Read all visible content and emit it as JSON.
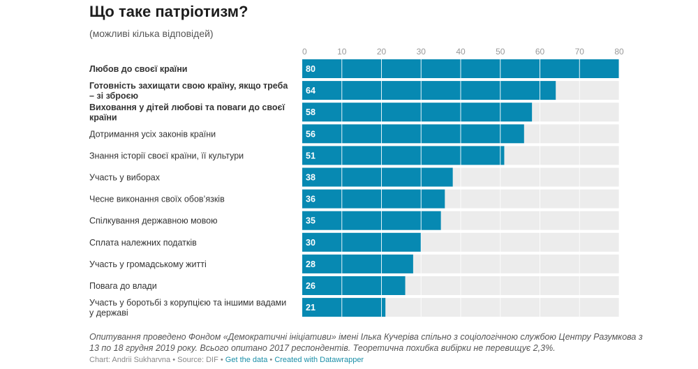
{
  "chart_data": {
    "type": "bar",
    "orientation": "horizontal",
    "title": "Що таке патріотизм?",
    "subtitle": "(можливі кілька відповідей)",
    "xlim": [
      0,
      80
    ],
    "ticks": [
      0,
      10,
      20,
      30,
      40,
      50,
      60,
      70,
      80
    ],
    "categories": [
      "Любов до своєї країни",
      "Готовність захищати свою країну, якщо треба – зі зброєю",
      "Виховання у дітей любові та поваги до своєї країни",
      "Дотримання усіх законів країни",
      "Знання історії своєї країни, її культури",
      "Участь у виборах",
      "Чесне виконання своїх обов’язків",
      "Спілкування державною мовою",
      "Сплата належних податків",
      "Участь у громадському житті",
      "Повага до влади",
      "Участь у боротьбі з корупцією та іншими вадами у державі"
    ],
    "values": [
      80,
      64,
      58,
      56,
      51,
      38,
      36,
      35,
      30,
      28,
      26,
      21
    ],
    "bold_labels": [
      true,
      true,
      true,
      false,
      false,
      false,
      false,
      false,
      false,
      false,
      false,
      false
    ],
    "grid": true,
    "colors": {
      "bar": "#0789b2",
      "background_bar": "#ececec",
      "tick_text": "#999999",
      "value_text": "#ffffff"
    }
  },
  "notes": "Опитування проведено Фондом «Демократичні ініціативи» імені Ілька Кучеріва спільно з соціологічною службою Центру Разумкова з 13 по 18 грудня 2019 року. Всього опитано 2017 респондентів. Теоретична похибка вибірки не перевищує 2,3%.",
  "footer": {
    "credit": "Chart: Andrii Sukharvna • Source: DIF • ",
    "get_data": "Get the data",
    "separator": " • ",
    "created_with": "Created with Datawrapper"
  }
}
